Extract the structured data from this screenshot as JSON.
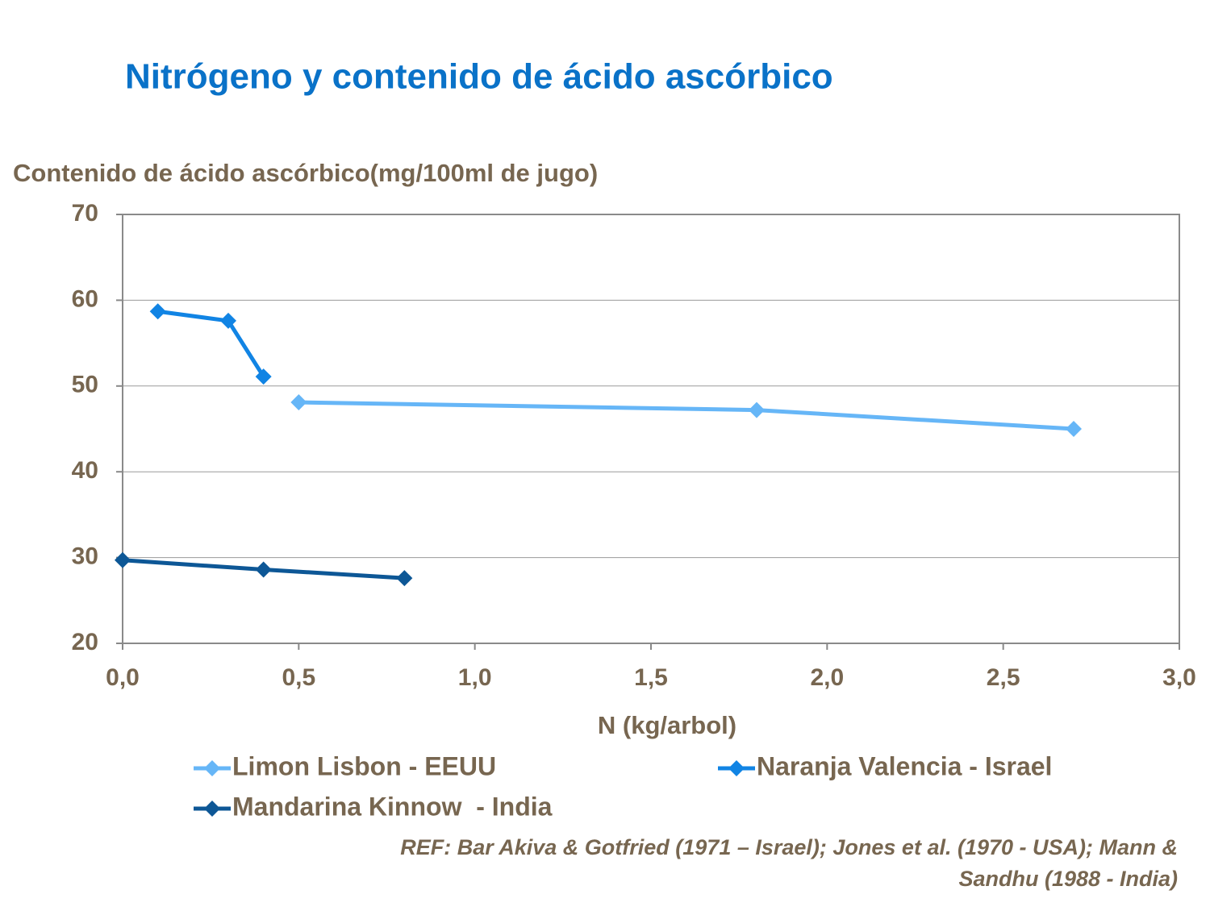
{
  "chart_data": {
    "type": "line",
    "title": "Nitrógeno y contenido de ácido ascórbico",
    "y_label": "Contenido de ácido ascórbico(mg/100ml de jugo)",
    "x_label": "N (kg/arbol)",
    "xlim": [
      0,
      3
    ],
    "xticks": [
      {
        "value": 0,
        "label": "0,0"
      },
      {
        "value": 0.5,
        "label": "0,5"
      },
      {
        "value": 1,
        "label": "1,0"
      },
      {
        "value": 1.5,
        "label": "1,5"
      },
      {
        "value": 2,
        "label": "2,0"
      },
      {
        "value": 2.5,
        "label": "2,5"
      },
      {
        "value": 3,
        "label": "3,0"
      }
    ],
    "ylim": [
      20,
      70
    ],
    "yticks": [
      20,
      30,
      40,
      50,
      60,
      70
    ],
    "grid": true,
    "series": [
      {
        "name": "Limon Lisbon - EEUU",
        "color": "#66b6f7",
        "x": [
          0.5,
          1.8,
          2.7
        ],
        "values": [
          48.1,
          47.2,
          45.0
        ]
      },
      {
        "name": "Naranja Valencia - Israel",
        "color": "#1184e4",
        "x": [
          0.1,
          0.3,
          0.4
        ],
        "values": [
          58.7,
          57.6,
          51.1
        ]
      },
      {
        "name": "Mandarina Kinnow  - India",
        "color": "#0d5796",
        "x": [
          0,
          0.4,
          0.8
        ],
        "values": [
          29.7,
          28.6,
          27.6
        ]
      }
    ],
    "reference": [
      "REF: Bar Akiva & Gotfried (1971 – Israel); Jones et al. (1970 - USA); Mann &",
      "Sandhu (1988 - India)"
    ]
  }
}
